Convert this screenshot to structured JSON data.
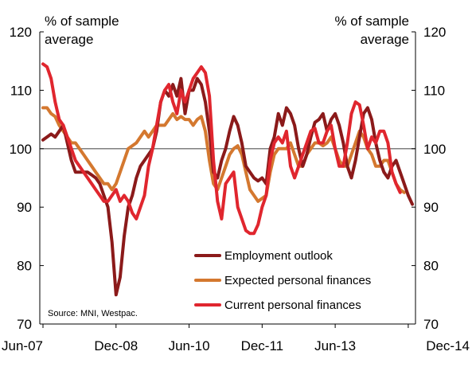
{
  "chart_data": {
    "type": "line",
    "ylabel_left": [
      "% of sample",
      "average"
    ],
    "ylabel_right": [
      "% of sample",
      "average"
    ],
    "ylim": [
      70,
      120
    ],
    "y_ticks": [
      "70",
      "80",
      "90",
      "100",
      "110",
      "120"
    ],
    "x_ticks": [
      "Jun-07",
      "Dec-08",
      "Jun-10",
      "Dec-11",
      "Jun-13",
      "Dec-14"
    ],
    "x_tick_index": [
      0,
      18,
      36,
      54,
      72,
      90
    ],
    "reference_line": 100,
    "grid": false,
    "legend_position": "bottom-center",
    "source": "Source: MNI, Westpac.",
    "series": [
      {
        "name": "Employment outlook",
        "color": "#8b1a1a",
        "values": [
          101.5,
          102,
          102.5,
          102,
          103,
          104,
          101,
          98,
          96,
          96,
          96,
          96,
          95.5,
          95,
          94,
          92,
          90,
          84,
          75,
          78,
          85,
          90,
          92,
          95,
          97,
          98,
          99,
          100,
          103,
          108,
          110,
          109,
          111,
          109,
          112,
          106,
          110,
          110,
          112,
          111,
          108,
          103,
          96,
          95,
          98,
          100,
          103,
          105.5,
          104,
          101,
          97,
          96,
          95,
          94.5,
          95,
          94,
          100,
          102,
          106,
          104,
          107,
          106,
          104,
          100,
          97,
          99,
          102,
          104.5,
          105,
          106,
          103,
          105,
          106,
          104,
          101,
          97,
          95,
          98,
          102,
          106,
          107,
          105,
          101,
          98,
          96,
          95,
          97,
          98,
          96,
          94,
          92,
          90.5
        ]
      },
      {
        "name": "Expected personal finances",
        "color": "#d4782f",
        "values": [
          107,
          107,
          106,
          105.5,
          104,
          103,
          102,
          101,
          101,
          100,
          99,
          98,
          97,
          96,
          95,
          94,
          94,
          93,
          94,
          96,
          98,
          100,
          100.5,
          101,
          102,
          103,
          102,
          103,
          104,
          104,
          104,
          105,
          106,
          105,
          105.5,
          105,
          105,
          104,
          105,
          105.5,
          103,
          98,
          94,
          93,
          95,
          97,
          99,
          100,
          100.5,
          99,
          96,
          93,
          92,
          91,
          91.5,
          92,
          96,
          99,
          100,
          100,
          100,
          101,
          99,
          97,
          97,
          99,
          100,
          101,
          101,
          100.5,
          101,
          102,
          100,
          98,
          97,
          97,
          99,
          101,
          103,
          102,
          100,
          99,
          97,
          97,
          98,
          98,
          96,
          94,
          93,
          92.5
        ]
      },
      {
        "name": "Current personal finances",
        "color": "#e0262e",
        "values": [
          114.5,
          114,
          112,
          108,
          105,
          104,
          102,
          100,
          98,
          97,
          96,
          95,
          94,
          93,
          92,
          91,
          91,
          92,
          93,
          91,
          92,
          91,
          89,
          88,
          90,
          92,
          97,
          100,
          104,
          108,
          110,
          111,
          108,
          106,
          110,
          108,
          110,
          112,
          113,
          114,
          113,
          109,
          98,
          91,
          88,
          94,
          95,
          96,
          90,
          88,
          86,
          85.5,
          85.5,
          87,
          90,
          92,
          98,
          101,
          102,
          101,
          103,
          97,
          95,
          97,
          99,
          101,
          103,
          103.5,
          101,
          101,
          103,
          104,
          100,
          97,
          97,
          101,
          106,
          108,
          107.5,
          104,
          100,
          102,
          101,
          103,
          103,
          101,
          96,
          94,
          92.5
        ]
      }
    ]
  }
}
